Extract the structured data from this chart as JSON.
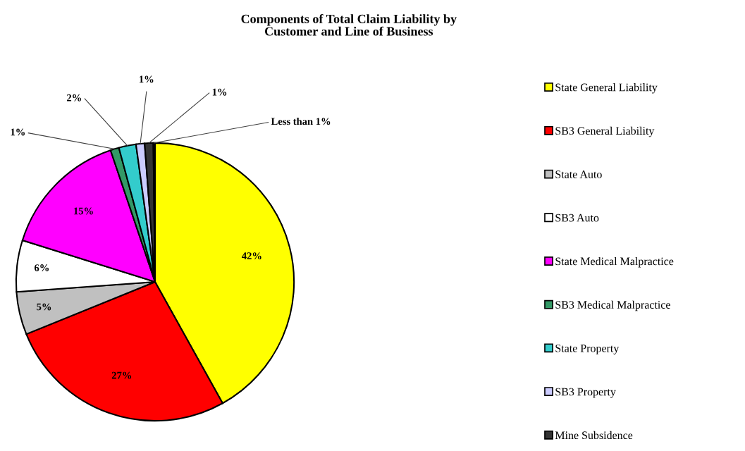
{
  "chart_data": {
    "type": "pie",
    "title": "Components of Total Claim Liability by\nCustomer and Line of Business",
    "categories": [
      "State General Liability",
      "SB3 General Liability",
      "State Auto",
      "SB3 Auto",
      "State Medical Malpractice",
      "SB3 Medical Malpractice",
      "State Property",
      "SB3 Property",
      "Mine Subsidence",
      null
    ],
    "values": [
      42,
      27,
      5,
      6,
      15,
      1,
      2,
      1,
      1,
      0.2
    ],
    "colors": [
      "#ffff00",
      "#ff0000",
      "#c0c0c0",
      "#ffffff",
      "#ff00ff",
      "#339966",
      "#33cccc",
      "#ccccff",
      "#333333",
      "#000000"
    ],
    "value_labels": [
      "42%",
      "27%",
      "5%",
      "6%",
      "15%",
      "1%",
      "2%",
      "1%",
      "1%",
      "Less than 1%"
    ],
    "legend": "right"
  }
}
